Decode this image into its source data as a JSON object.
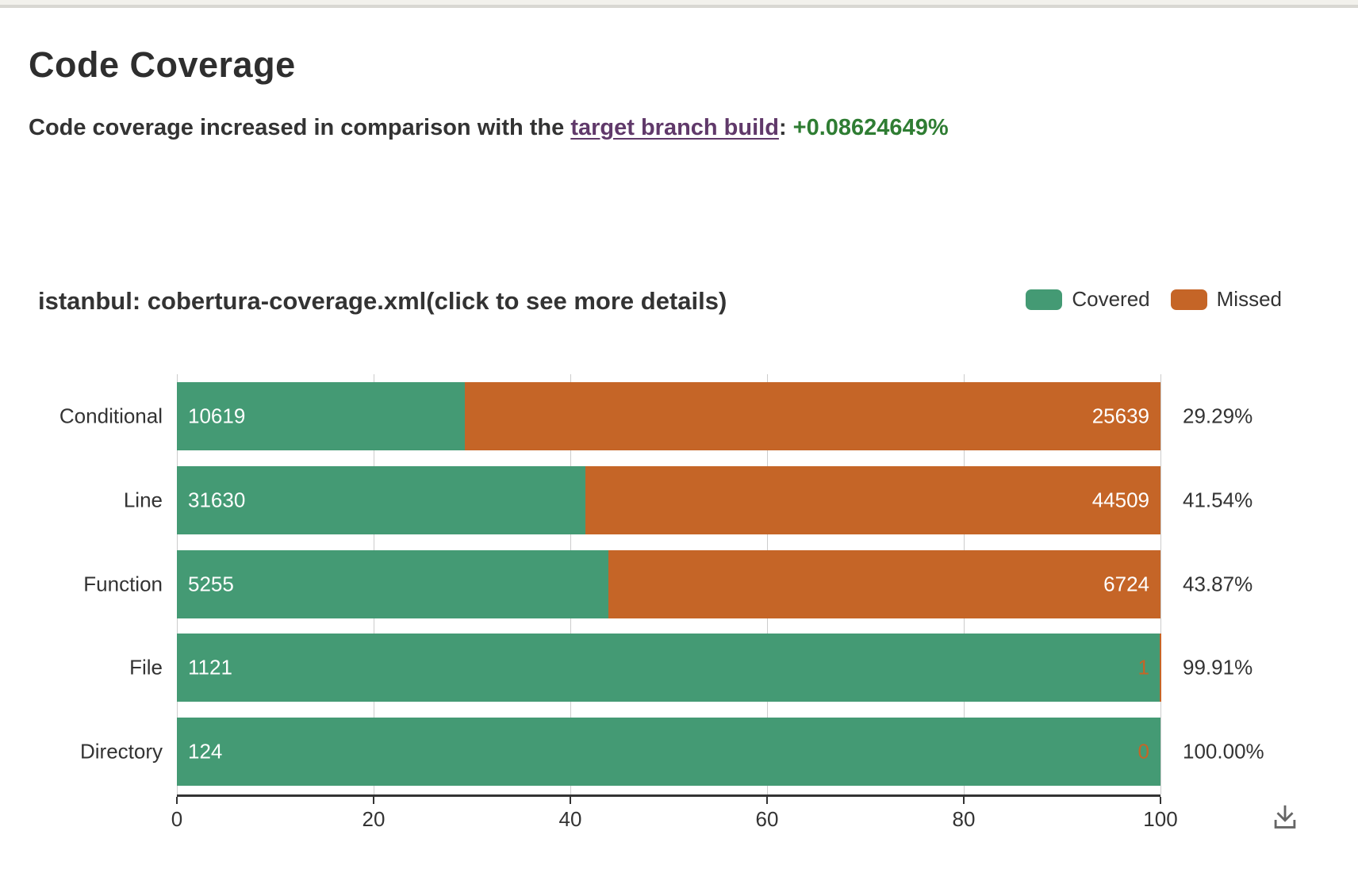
{
  "page": {
    "title": "Code Coverage",
    "subtitle_prefix": "Code coverage increased in comparison with the ",
    "subtitle_link": "target branch build",
    "subtitle_separator": ": ",
    "subtitle_delta": "+0.08624649%",
    "delta_color": "#2f7d33",
    "link_color": "#60396a"
  },
  "chart": {
    "title": "istanbul: cobertura-coverage.xml(click to see more details)",
    "legend": [
      {
        "label": "Covered",
        "color": "#449a74"
      },
      {
        "label": "Missed",
        "color": "#c56527"
      }
    ],
    "download_icon": "download-icon",
    "colors": {
      "covered": "#449a74",
      "missed": "#c56527",
      "axis": "#333333",
      "gridline": "#cccccc"
    }
  },
  "chart_data": {
    "type": "bar",
    "orientation": "horizontal",
    "stacked": true,
    "title": "istanbul: cobertura-coverage.xml(click to see more details)",
    "categories": [
      "Conditional",
      "Line",
      "Function",
      "File",
      "Directory"
    ],
    "series": [
      {
        "name": "Covered",
        "color": "#449a74",
        "values": [
          10619,
          31630,
          5255,
          1121,
          124
        ]
      },
      {
        "name": "Missed",
        "color": "#c56527",
        "values": [
          25639,
          44509,
          6724,
          1,
          0
        ]
      }
    ],
    "percent_labels": [
      "29.29%",
      "41.54%",
      "43.87%",
      "99.91%",
      "100.00%"
    ],
    "coverage_percent": [
      29.29,
      41.54,
      43.87,
      99.91,
      100.0
    ],
    "x_axis": {
      "ticks": [
        0,
        20,
        40,
        60,
        80,
        100
      ],
      "min": 0,
      "max": 100
    },
    "grid": true,
    "legend_position": "top-right",
    "value_labels": "covered inside-left white; missed inside-right white, or orange text on bar when segment too small"
  }
}
